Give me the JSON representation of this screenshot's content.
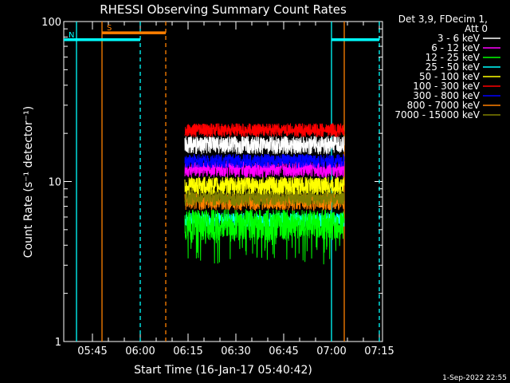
{
  "chart_data": {
    "type": "line",
    "title": "RHESSI Observing Summary Count Rates",
    "xlabel": "Start Time (16-Jan-17 05:40:42)",
    "ylabel": "Count Rate (s⁻¹ detector⁻¹)",
    "yscale": "log",
    "ylim": [
      1,
      100
    ],
    "xlim_minutes_after_0540": [
      -4,
      96
    ],
    "x_tick_labels": [
      "05:45",
      "06:00",
      "06:15",
      "06:30",
      "06:45",
      "07:00",
      "07:15"
    ],
    "x_tick_minutes": [
      5,
      20,
      35,
      50,
      65,
      80,
      95
    ],
    "y_tick_labels": [
      "1",
      "10",
      "100"
    ],
    "y_tick_values": [
      1,
      10,
      100
    ],
    "data_span_minutes": [
      34,
      84
    ],
    "legend": {
      "header_line1": "Det 3,9, FDecim 1,",
      "header_line2": "Att 0",
      "placement": "outside-right"
    },
    "series": [
      {
        "name": "3 - 6 keV",
        "color": "#ffffff",
        "level": 17,
        "spread": 0.13,
        "dips": false
      },
      {
        "name": "6 - 12 keV",
        "color": "#ff00ff",
        "level": 12,
        "spread": 0.12,
        "dips": false
      },
      {
        "name": "12 - 25 keV",
        "color": "#00ff00",
        "level": 5.5,
        "spread": 0.22,
        "dips": true
      },
      {
        "name": "25 - 50 keV",
        "color": "#00ffff",
        "level": 5.8,
        "spread": 0.1,
        "dips": false
      },
      {
        "name": "50 - 100 keV",
        "color": "#ffff00",
        "level": 9.5,
        "spread": 0.13,
        "dips": false
      },
      {
        "name": "100 - 300 keV",
        "color": "#ff0000",
        "level": 21,
        "spread": 0.1,
        "dips": false
      },
      {
        "name": "300 - 800 keV",
        "color": "#0000ff",
        "level": 13.5,
        "spread": 0.1,
        "dips": false
      },
      {
        "name": "800 - 7000 keV",
        "color": "#ff8000",
        "level": 7.5,
        "spread": 0.12,
        "dips": false
      },
      {
        "name": "7000 - 15000 keV",
        "color": "#808000",
        "level": 8,
        "spread": 0.12,
        "dips": false
      }
    ],
    "flags": [
      {
        "label": "S",
        "color": "#ff8000",
        "level": 85,
        "minutes_start": 8,
        "minutes_end": 28
      },
      {
        "label": "N",
        "color": "#00ffff",
        "level": 77,
        "minutes_start": -4,
        "minutes_end": 20
      },
      {
        "label": "",
        "color": "#00ffff",
        "level": 77,
        "minutes_start": 80,
        "minutes_end": 95
      }
    ],
    "vertical_markers": [
      {
        "color": "#00ffff",
        "style": "solid",
        "minute": 0
      },
      {
        "color": "#ff8000",
        "style": "solid",
        "minute": 8
      },
      {
        "color": "#00ffff",
        "style": "dashed",
        "minute": 20
      },
      {
        "color": "#ff8000",
        "style": "dashed",
        "minute": 28
      },
      {
        "color": "#00ffff",
        "style": "solid",
        "minute": 80
      },
      {
        "color": "#ff8000",
        "style": "solid",
        "minute": 84
      },
      {
        "color": "#00ffff",
        "style": "dashed",
        "minute": 95
      }
    ]
  },
  "footer": {
    "date": "1-Sep-2022 22:55"
  }
}
